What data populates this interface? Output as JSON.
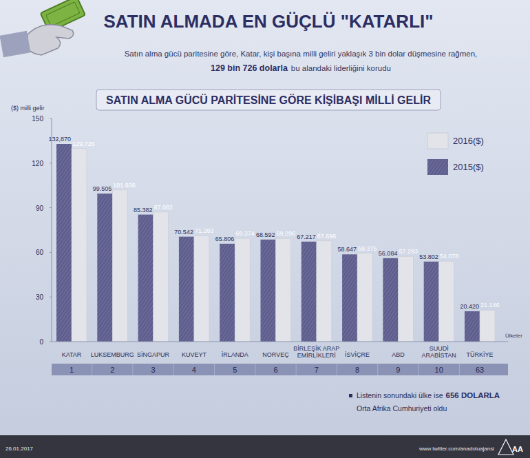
{
  "header": {
    "title": "SATIN ALMADA EN GÜÇLÜ \"KATARLI\"",
    "subtitle": [
      "Satın alma gücü paritesine göre, Katar, kişi başına milli geliri yaklaşık 3 bin dolar düşmesine rağmen,",
      "129 bin 726 dolarla",
      "bu alandaki liderliğini korudu"
    ]
  },
  "chart_data": {
    "type": "bar",
    "title": "SATIN ALMA GÜCÜ PARİTESİNE GÖRE KİŞİBAŞI MİLLİ GELİR",
    "y_label": "($) milli gelir",
    "x_label": "Ülkeler",
    "categories": [
      "KATAR",
      "LUKSEMBURG",
      "SİNGAPUR",
      "KUVEYT",
      "İRLANDA",
      "NORVEÇ",
      "BİRLEŞİK ARAP EMİRLİKLERİ",
      "İSVİÇRE",
      "ABD",
      "SUUDİ ARABİSTAN",
      "TÜRKİYE"
    ],
    "ranks": [
      1,
      2,
      3,
      4,
      5,
      6,
      7,
      8,
      9,
      10,
      63
    ],
    "series": [
      {
        "name": "2015($)",
        "color": "#5e5d8e",
        "values": [
          132.87,
          99.505,
          85.382,
          70.542,
          65.806,
          68.592,
          67.217,
          58.647,
          56.084,
          53.802,
          20.42
        ],
        "value_labels": [
          "132,870",
          "99.505",
          "85.382",
          "70.542",
          "65.806",
          "68.592",
          "67.217",
          "58.647",
          "56.084",
          "53.802",
          "20.420"
        ]
      },
      {
        "name": "2016($)",
        "color": "#e3e4ea",
        "values": [
          129.726,
          101.936,
          87.082,
          71.263,
          69.374,
          69.296,
          67.696,
          59.375,
          57.293,
          54.078,
          21.146
        ],
        "value_labels": [
          "129,726",
          "101.936",
          "87.082",
          "71.263",
          "69.374",
          "69.296",
          "67.696",
          "59.375",
          "57.293",
          "54.078",
          "21.146"
        ]
      }
    ],
    "ylim": [
      0,
      150
    ],
    "yticks": [
      0,
      30,
      60,
      90,
      120,
      150
    ],
    "grid": false,
    "data_labels": true,
    "legend": "top-right"
  },
  "note": [
    "Listenin sonundaki ülke ise",
    "656 DOLARLA",
    "Orta Afrika Cumhuriyeti oldu"
  ],
  "footer": {
    "date": "26.01.2017",
    "source": "www.twitter.com/anadoluajansi",
    "logo": "AA"
  }
}
